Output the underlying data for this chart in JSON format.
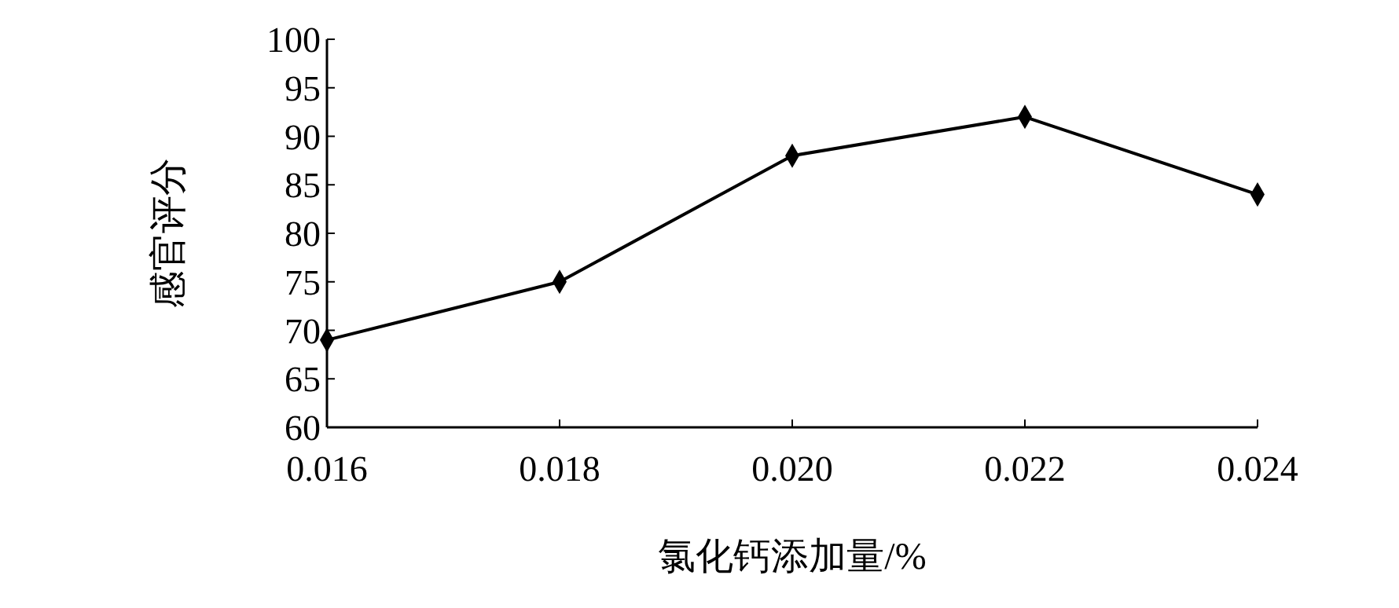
{
  "chart_data": {
    "type": "line",
    "xlabel": "氯化钙添加量/%",
    "ylabel": "感官评分",
    "x": [
      0.016,
      0.018,
      0.02,
      0.022,
      0.024
    ],
    "series": [
      {
        "color": "#000000",
        "values": [
          69,
          75,
          88,
          92,
          84
        ]
      }
    ],
    "xlim": [
      0.016,
      0.024
    ],
    "ylim": [
      60,
      100
    ],
    "xticks": [
      {
        "value": 0.016,
        "label": "0.016"
      },
      {
        "value": 0.018,
        "label": "0.018"
      },
      {
        "value": 0.02,
        "label": "0.020"
      },
      {
        "value": 0.022,
        "label": "0.022"
      },
      {
        "value": 0.024,
        "label": "0.024"
      }
    ],
    "yticks": [
      60,
      65,
      70,
      75,
      80,
      85,
      90,
      95,
      100
    ],
    "marker": "diamond",
    "line_style": "solid",
    "grid": false
  }
}
